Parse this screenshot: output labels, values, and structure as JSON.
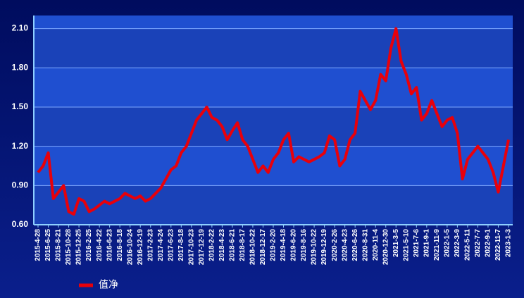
{
  "chart_data": {
    "type": "line",
    "categories": [
      "2015-4-28",
      null,
      "2015-6-25",
      null,
      "2015-8-21",
      null,
      "2015-10-28",
      null,
      "2015-12-25",
      null,
      "2016-2-25",
      null,
      "2016-4-22",
      null,
      "2016-6-23",
      null,
      "2016-8-18",
      null,
      "2016-10-24",
      null,
      "2016-12-19",
      null,
      "2017-2-23",
      null,
      "2017-4-24",
      null,
      "2017-6-23",
      null,
      "2017-8-18",
      null,
      "2017-10-23",
      null,
      "2017-12-19",
      null,
      "2018-2-22",
      null,
      "2018-4-23",
      null,
      "2018-6-21",
      null,
      "2018-8-17",
      null,
      "2018-10-22",
      null,
      "2018-12-17",
      null,
      "2019-2-20",
      null,
      "2019-4-18",
      null,
      "2019-6-20",
      null,
      "2019-8-16",
      null,
      "2019-10-22",
      null,
      "2019-12-19",
      null,
      "2020-2-26",
      null,
      "2020-4-23",
      null,
      "2020-6-26",
      null,
      "2020-8-31",
      null,
      "2020-11-4",
      null,
      "2020-12-30",
      null,
      "2021-3-5",
      null,
      "2021-5-10",
      null,
      "2021-7-6",
      null,
      "2021-9-1",
      null,
      "2021-11-9",
      null,
      "2022-1-5",
      null,
      "2022-3-9",
      null,
      "2022-5-11",
      null,
      "2022-7-7",
      null,
      "2022-9-1",
      null,
      "2022-11-7",
      null,
      "2023-1-3"
    ],
    "series": [
      {
        "name": "值净",
        "color": "#e8000b",
        "values": [
          1.0,
          1.05,
          1.15,
          0.8,
          0.85,
          0.9,
          0.7,
          0.68,
          0.8,
          0.78,
          0.7,
          0.72,
          0.75,
          0.78,
          0.76,
          0.78,
          0.8,
          0.84,
          0.82,
          0.8,
          0.82,
          0.78,
          0.8,
          0.84,
          0.88,
          0.95,
          1.02,
          1.05,
          1.15,
          1.2,
          1.3,
          1.4,
          1.45,
          1.5,
          1.42,
          1.4,
          1.35,
          1.25,
          1.32,
          1.38,
          1.25,
          1.2,
          1.1,
          1.0,
          1.05,
          1.0,
          1.1,
          1.15,
          1.25,
          1.3,
          1.08,
          1.12,
          1.1,
          1.08,
          1.1,
          1.12,
          1.15,
          1.28,
          1.25,
          1.05,
          1.1,
          1.25,
          1.3,
          1.62,
          1.55,
          1.48,
          1.55,
          1.75,
          1.7,
          1.95,
          2.1,
          1.85,
          1.75,
          1.6,
          1.65,
          1.4,
          1.45,
          1.55,
          1.45,
          1.35,
          1.4,
          1.42,
          1.3,
          0.95,
          1.1,
          1.15,
          1.2,
          1.15,
          1.1,
          1.0,
          0.85,
          1.05,
          1.25
        ]
      }
    ],
    "ylim": [
      0.6,
      2.2
    ],
    "yticks": [
      {
        "value": 0.6,
        "label": "0.60"
      },
      {
        "value": 0.9,
        "label": "0.90"
      },
      {
        "value": 1.2,
        "label": "1.20"
      },
      {
        "value": 1.5,
        "label": "1.50"
      },
      {
        "value": 1.8,
        "label": "1.80"
      },
      {
        "value": 2.1,
        "label": "2.10"
      }
    ],
    "grid": true
  }
}
